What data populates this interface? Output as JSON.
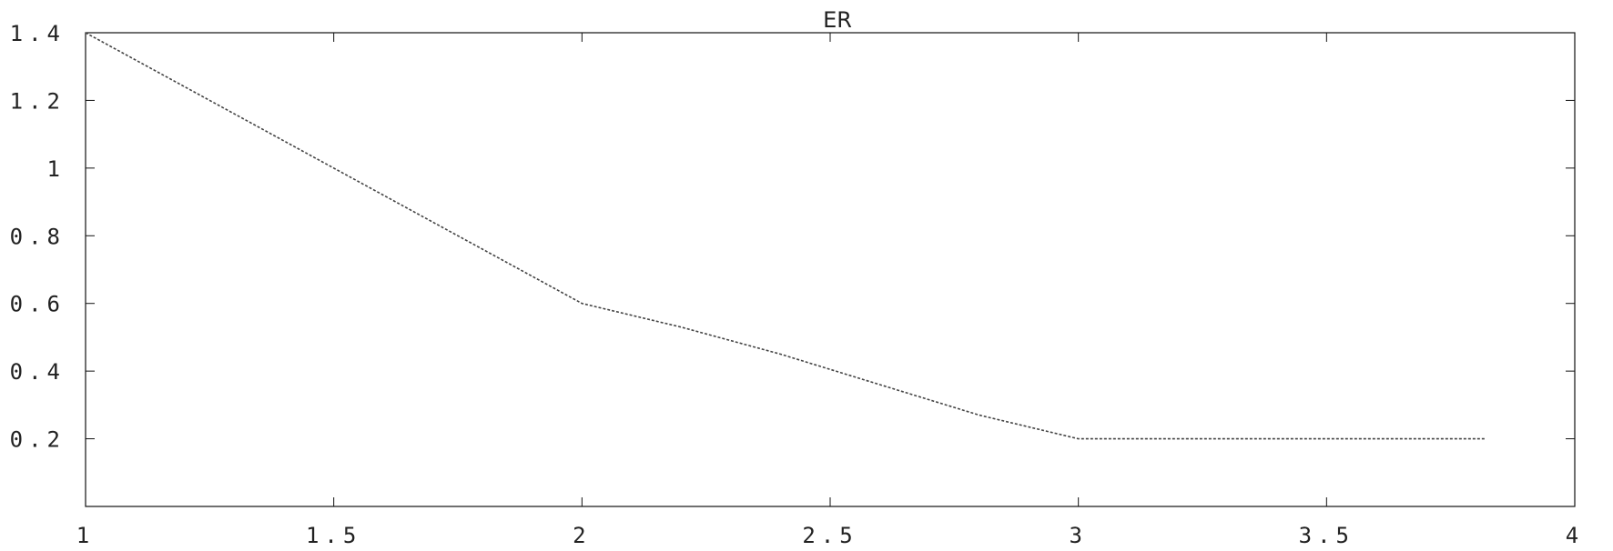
{
  "chart_data": {
    "type": "line",
    "title": "ER",
    "xlabel": "",
    "ylabel": "",
    "xlim": [
      1,
      4
    ],
    "ylim": [
      0,
      1.4
    ],
    "x_ticks": [
      {
        "value": 1,
        "label": "1"
      },
      {
        "value": 1.5,
        "label": "1.5"
      },
      {
        "value": 2,
        "label": "2"
      },
      {
        "value": 2.5,
        "label": "2.5"
      },
      {
        "value": 3,
        "label": "3"
      },
      {
        "value": 3.5,
        "label": "3.5"
      },
      {
        "value": 4,
        "label": "4"
      }
    ],
    "y_ticks": [
      {
        "value": 0.2,
        "label": "0.2"
      },
      {
        "value": 0.4,
        "label": "0.4"
      },
      {
        "value": 0.6,
        "label": "0.6"
      },
      {
        "value": 0.8,
        "label": "0.8"
      },
      {
        "value": 1,
        "label": "1"
      },
      {
        "value": 1.2,
        "label": "1.2"
      },
      {
        "value": 1.4,
        "label": "1.4"
      }
    ],
    "grid": false,
    "legend": "none",
    "series": [
      {
        "x": [
          1.0,
          1.25,
          1.5,
          1.75,
          2.0,
          2.2,
          2.4,
          2.6,
          2.8,
          3.0,
          3.25,
          3.5,
          3.75,
          3.82
        ],
        "y": [
          1.4,
          1.2,
          1.0,
          0.8,
          0.6,
          0.53,
          0.45,
          0.36,
          0.27,
          0.2,
          0.2,
          0.2,
          0.2,
          0.2
        ]
      }
    ]
  }
}
